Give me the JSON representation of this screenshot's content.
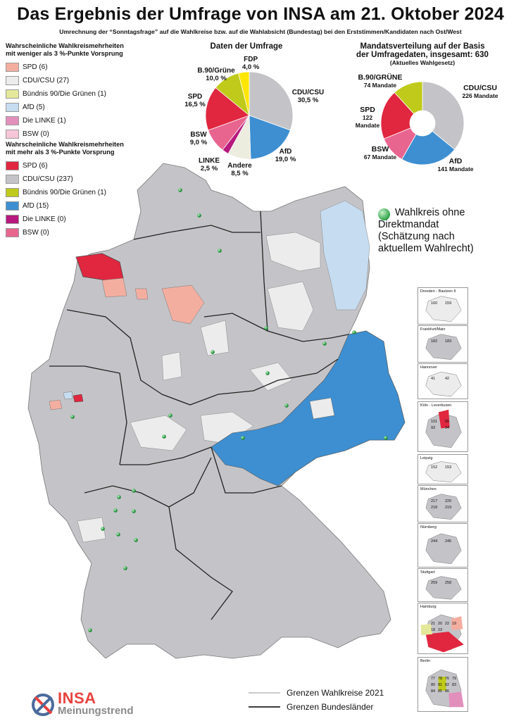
{
  "header": {
    "title": "Das Ergebnis der Umfrage von INSA am 21. Oktober 2024",
    "subtitle": "Umrechnung der “Sonntagsfrage” auf die Wahlkreise bzw. auf die Wahlabsicht (Bundestag) bei den Erststimmen/Kandidaten nach Ost/West"
  },
  "legend_under3": {
    "heading_line1": "Wahrscheinliche Wahlkreismehrheiten",
    "heading_line2": "mit weniger als 3 %-Punkte Vorsprung",
    "items": [
      {
        "label": "SPD (6)",
        "color": "#f4aea0"
      },
      {
        "label": "CDU/CSU (27)",
        "color": "#ececec"
      },
      {
        "label": "Bündnis 90/Die Grünen (1)",
        "color": "#e4e89a"
      },
      {
        "label": "AfD (5)",
        "color": "#c6dcf0"
      },
      {
        "label": "Die LINKE (1)",
        "color": "#e38fbc"
      },
      {
        "label": "BSW (0)",
        "color": "#f7c6d8"
      }
    ]
  },
  "legend_over3": {
    "heading_line1": "Wahrscheinliche Wahlkreismehrheiten",
    "heading_line2": "mit mehr als 3 %-Punkte Vorsprung",
    "items": [
      {
        "label": "SPD (6)",
        "color": "#e0273f"
      },
      {
        "label": "CDU/CSU (237)",
        "color": "#c4c4c8"
      },
      {
        "label": "Bündnis 90/Die Grünen (1)",
        "color": "#bfca1a"
      },
      {
        "label": "AfD (15)",
        "color": "#3d8fd1"
      },
      {
        "label": "Die LINKE (0)",
        "color": "#b7197e"
      },
      {
        "label": "BSW (0)",
        "color": "#e8658f"
      }
    ]
  },
  "chart_data": [
    {
      "type": "pie",
      "title": "Daten der Umfrage",
      "slices": [
        {
          "label": "CDU/CSU",
          "value_text": "30,5 %",
          "value": 30.5,
          "color": "#c4c4c8"
        },
        {
          "label": "AfD",
          "value_text": "19,0 %",
          "value": 19.0,
          "color": "#3d8fd1"
        },
        {
          "label": "Andere",
          "value_text": "8,5 %",
          "value": 8.5,
          "color": "#ececdf"
        },
        {
          "label": "LINKE",
          "value_text": "2,5 %",
          "value": 2.5,
          "color": "#b7197e"
        },
        {
          "label": "BSW",
          "value_text": "9,0 %",
          "value": 9.0,
          "color": "#e8658f"
        },
        {
          "label": "SPD",
          "value_text": "16,5 %",
          "value": 16.5,
          "color": "#e0273f"
        },
        {
          "label": "B.90/Grüne",
          "value_text": "10,0 %",
          "value": 10.0,
          "color": "#bfca1a"
        },
        {
          "label": "FDP",
          "value_text": "4,0 %",
          "value": 4.0,
          "color": "#ffe600"
        }
      ]
    },
    {
      "type": "pie",
      "title_line1": "Mandatsverteilung auf der Basis",
      "title_line2": "der Umfragedaten, insgesamt: 630",
      "note": "(Aktuelles Wahlgesetz)",
      "slices": [
        {
          "label": "CDU/CSU",
          "value_text": "226 Mandate",
          "value": 226,
          "color": "#c4c4c8"
        },
        {
          "label": "AfD",
          "value_text": "141 Mandate",
          "value": 141,
          "color": "#3d8fd1"
        },
        {
          "label": "BSW",
          "value_text": "67 Mandate",
          "value": 67,
          "color": "#e8658f"
        },
        {
          "label": "SPD",
          "value_text_1": "122",
          "value_text_2": "Mandate",
          "value": 122,
          "color": "#e0273f"
        },
        {
          "label": "B.90/GRÜNE",
          "value_text": "74 Mandate",
          "value": 74,
          "color": "#bfca1a"
        }
      ]
    }
  ],
  "map_note": {
    "line1": "Wahlkreis ohne",
    "line2": "Direktmandat",
    "line3": "(Schätzung nach",
    "line4": "aktuellem Wahlrecht)"
  },
  "insets": [
    {
      "label": "Dresden - Bautzen II",
      "numbers": [
        "160",
        "159"
      ]
    },
    {
      "label": "Frankfurt/Main",
      "numbers": [
        "182",
        "183"
      ]
    },
    {
      "label": "Hannover",
      "numbers": [
        "41",
        "42"
      ]
    },
    {
      "label": "Köln - Leverkusen",
      "numbers": [
        "101",
        "95",
        "93",
        "94"
      ]
    },
    {
      "label": "Leipzig",
      "numbers": [
        "152",
        "153"
      ]
    },
    {
      "label": "München",
      "numbers": [
        "217",
        "220",
        "218",
        "219"
      ]
    },
    {
      "label": "Nürnberg",
      "numbers": [
        "244",
        "245"
      ]
    },
    {
      "label": "Stuttgart",
      "numbers": [
        "259",
        "258"
      ]
    },
    {
      "label": "Hamburg",
      "numbers": [
        "21",
        "20",
        "22",
        "19",
        "18",
        "23"
      ]
    },
    {
      "label": "Berlin",
      "numbers": [
        "77",
        "78",
        "76",
        "79",
        "80",
        "81",
        "82",
        "83",
        "84",
        "85",
        "86"
      ]
    }
  ],
  "bottom_legend": {
    "wk_label": "Grenzen Wahlkreise 2021",
    "bl_label": "Grenzen Bundesländer"
  },
  "logo": {
    "brand": "INSA",
    "sub": "Meinungstrend"
  }
}
